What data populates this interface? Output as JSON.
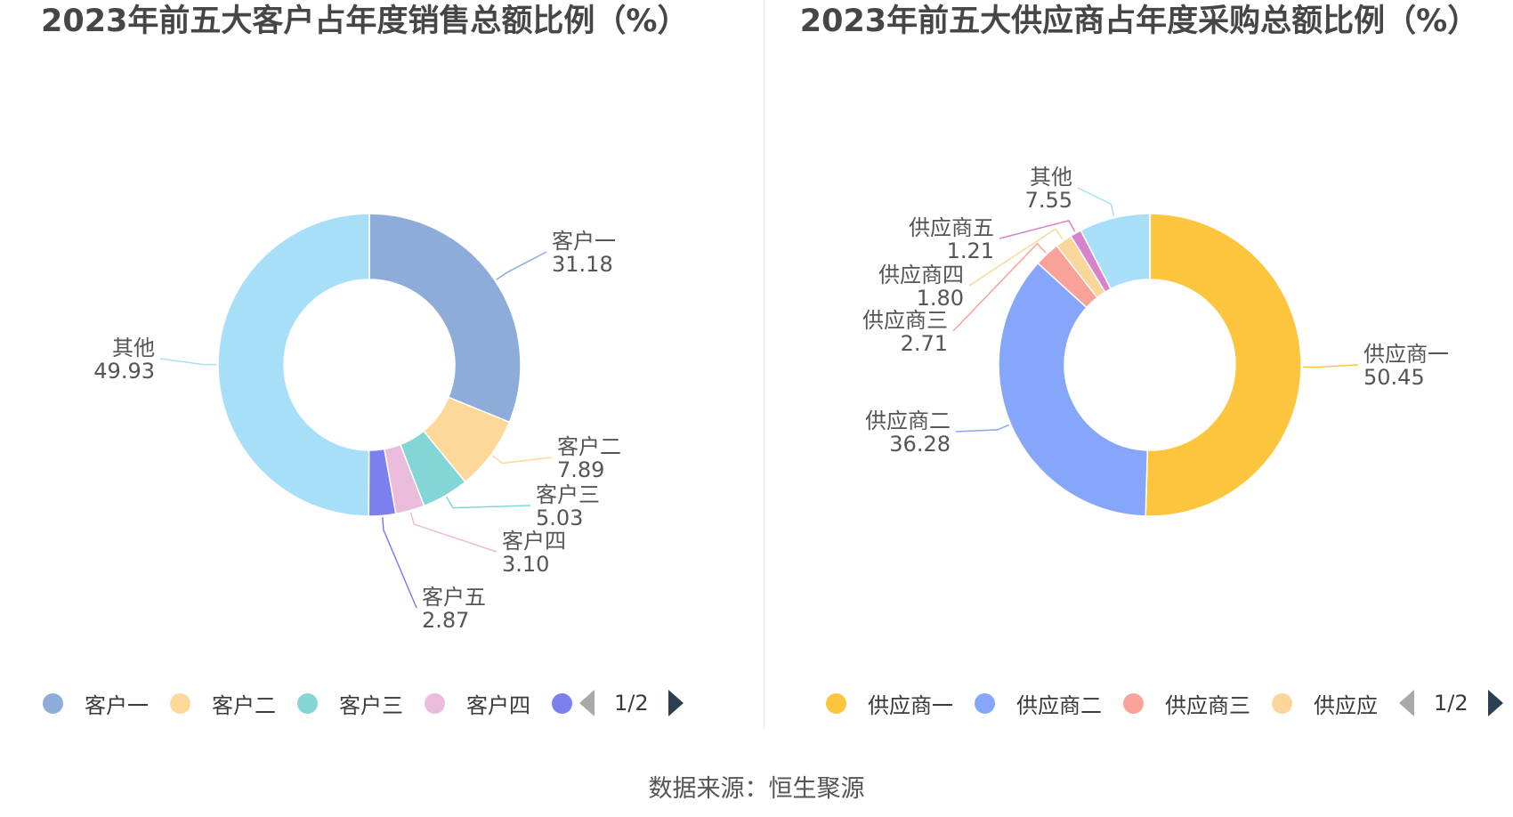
{
  "source_text": "数据来源：恒生聚源",
  "chart_data": [
    {
      "type": "pie",
      "title": "2023年前五大客户占年度销售总额比例（%）",
      "categories": [
        "客户一",
        "客户二",
        "客户三",
        "客户四",
        "客户五",
        "其他"
      ],
      "values": [
        31.18,
        7.89,
        5.03,
        3.1,
        2.87,
        49.93
      ],
      "value_labels": [
        "31.18",
        "7.89",
        "5.03",
        "3.10",
        "2.87",
        "49.93"
      ],
      "colors": [
        "#8eacd9",
        "#fdd898",
        "#83d5d6",
        "#e9bcdc",
        "#7b7ff0",
        "#a8dff8"
      ],
      "legend": {
        "visible_items": [
          "客户一",
          "客户二",
          "客户三",
          "客户四"
        ],
        "visible_colors": [
          "#8eacd9",
          "#fdd898",
          "#83d5d6",
          "#e9bcdc",
          "#7b7ff0"
        ],
        "page": "1/2"
      }
    },
    {
      "type": "pie",
      "title": "2023年前五大供应商占年度采购总额比例（%）",
      "categories": [
        "供应商一",
        "供应商二",
        "供应商三",
        "供应商四",
        "供应商五",
        "其他"
      ],
      "values": [
        50.45,
        36.28,
        2.71,
        1.8,
        1.21,
        7.55
      ],
      "value_labels": [
        "50.45",
        "36.28",
        "2.71",
        "1.80",
        "1.21",
        "7.55"
      ],
      "colors": [
        "#fdc53d",
        "#86a6fb",
        "#f8a29a",
        "#fbd69a",
        "#d783cc",
        "#a8dff8"
      ],
      "legend": {
        "visible_items": [
          "供应商一",
          "供应商二",
          "供应商三",
          "供应应"
        ],
        "visible_colors": [
          "#fdc53d",
          "#86a6fb",
          "#f8a29a",
          "#fbd69a"
        ],
        "page": "1/2"
      }
    }
  ]
}
